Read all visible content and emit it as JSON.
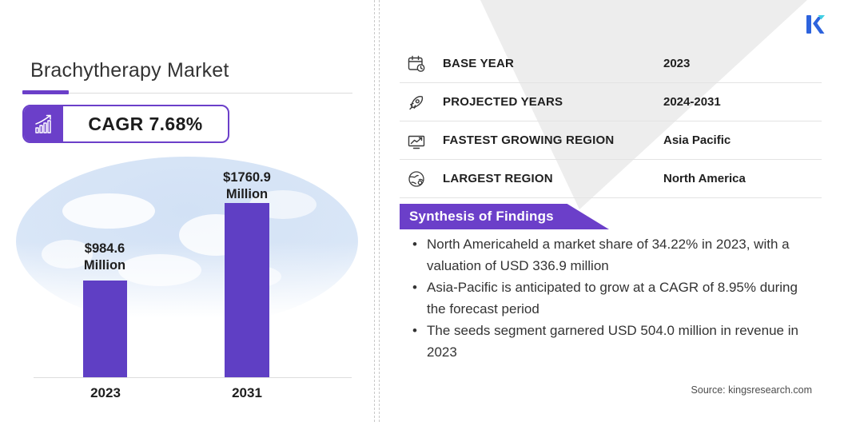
{
  "colors": {
    "accent_purple": "#6B3FC9",
    "bar_purple": "#5F3FC4",
    "map_blue": "#D9E6F7",
    "triangle_gray": "#EDEDED",
    "logo_blue": "#2D63DD",
    "logo_teal": "#41CFE3"
  },
  "header": {
    "title": "Brachytherapy Market",
    "cagr_label": "CAGR 7.68%"
  },
  "chart_data": {
    "type": "bar",
    "title": "Brachytherapy Market",
    "unit": "USD Million",
    "categories": [
      "2023",
      "2031"
    ],
    "values": [
      984.6,
      1760.9
    ],
    "value_labels": [
      {
        "line1": "$984.6",
        "line2": "Million"
      },
      {
        "line1": "$1760.9",
        "line2": "Million"
      }
    ],
    "bar_color": "#5F3FC4",
    "ylim": [
      0,
      1760.9
    ],
    "grid": "off",
    "cagr": "7.68%"
  },
  "stats_table": {
    "rows": [
      {
        "icon": "calendar-clock-icon",
        "label": "BASE YEAR",
        "value": "2023"
      },
      {
        "icon": "rocket-icon",
        "label": "PROJECTED YEARS",
        "value": "2024-2031"
      },
      {
        "icon": "growth-chart-icon",
        "label": "FASTEST GROWING REGION",
        "value": "Asia Pacific"
      },
      {
        "icon": "globe-icon",
        "label": "LARGEST REGION",
        "value": "North America"
      }
    ]
  },
  "findings": {
    "title": "Synthesis of Findings",
    "bullets": [
      "North Americaheld a market share of 34.22% in 2023, with a valuation of USD 336.9 million",
      "Asia-Pacific is anticipated to grow at a CAGR of 8.95% during the forecast period",
      "The seeds segment garnered USD 504.0 million in revenue in 2023"
    ]
  },
  "source": "Source: kingsresearch.com",
  "logo": {
    "name": "kings-research-logo"
  }
}
